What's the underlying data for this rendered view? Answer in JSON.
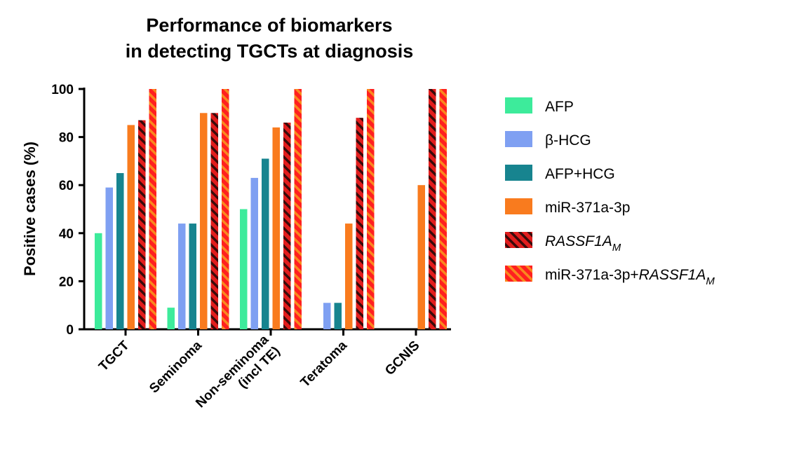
{
  "chart_data": {
    "type": "bar",
    "title_lines": [
      "Performance of biomarkers",
      "in detecting TGCTs at diagnosis"
    ],
    "ylabel": "Positive cases (%)",
    "xlabel": "",
    "ylim": [
      0,
      100
    ],
    "yticks": [
      0,
      20,
      40,
      60,
      80,
      100
    ],
    "grid": false,
    "legend_position": "right",
    "categories": [
      [
        "TGCT"
      ],
      [
        "Seminoma"
      ],
      [
        "Non-seminoma",
        "(incl TE)"
      ],
      [
        "Teratoma"
      ],
      [
        "GCNIS"
      ]
    ],
    "series": [
      {
        "name": "AFP",
        "color": "#3deb9b",
        "pattern": "solid",
        "values": [
          40,
          9,
          50,
          0,
          0
        ]
      },
      {
        "name": "β-HCG",
        "color": "#7fa0f2",
        "pattern": "solid",
        "values": [
          59,
          44,
          63,
          11,
          0
        ]
      },
      {
        "name": "AFP+HCG",
        "color": "#17848f",
        "pattern": "solid",
        "values": [
          65,
          44,
          71,
          11,
          0
        ]
      },
      {
        "name": "miR-371a-3p",
        "color": "#f97b1e",
        "pattern": "solid",
        "values": [
          85,
          90,
          84,
          44,
          60
        ]
      },
      {
        "name": "RASSF1A",
        "name_sub": "M",
        "name_prefix": "",
        "italic": true,
        "color": "#e21d1d",
        "stripe": "#3a0a0a",
        "pattern": "striped",
        "values": [
          87,
          90,
          86,
          88,
          100
        ]
      },
      {
        "name": "RASSF1A",
        "name_sub": "M",
        "name_prefix": "miR-371a-3p+",
        "italic": true,
        "color": "#ff2020",
        "stripe": "#f9891e",
        "pattern": "striped",
        "values": [
          100,
          100,
          100,
          100,
          100
        ]
      }
    ]
  }
}
